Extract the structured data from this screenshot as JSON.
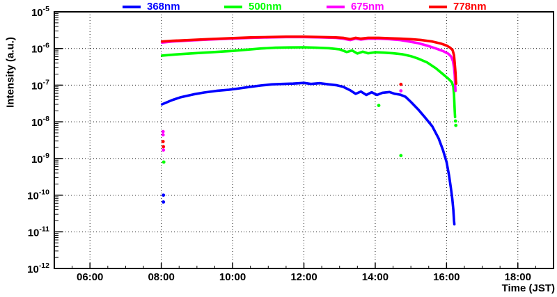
{
  "chart_data": {
    "type": "line",
    "title": "",
    "xlabel": "Time (JST)",
    "ylabel": "Intensity (a.u.)",
    "legend_position": "top",
    "grid": true,
    "x_axis": {
      "domain_hours": [
        5.0,
        19.0
      ],
      "major_ticks": [
        {
          "hour": 6,
          "label": "06:00"
        },
        {
          "hour": 8,
          "label": "08:00"
        },
        {
          "hour": 10,
          "label": "10:00"
        },
        {
          "hour": 12,
          "label": "12:00"
        },
        {
          "hour": 14,
          "label": "14:00"
        },
        {
          "hour": 16,
          "label": "16:00"
        },
        {
          "hour": 18,
          "label": "18:00"
        }
      ],
      "minor_interval_hours": 0.5
    },
    "y_axis": {
      "scale": "log",
      "domain": [
        1e-12,
        1e-05
      ],
      "tick_exponents": [
        -5,
        -6,
        -7,
        -8,
        -9,
        -10,
        -11,
        -12
      ]
    },
    "series": [
      {
        "name": "368nm",
        "color": "#0000ff",
        "points": [
          [
            8.02,
            3e-08
          ],
          [
            8.3,
            3.9e-08
          ],
          [
            8.55,
            4.7e-08
          ],
          [
            8.9,
            5.6e-08
          ],
          [
            9.2,
            6.3e-08
          ],
          [
            9.55,
            7e-08
          ],
          [
            9.9,
            7.5e-08
          ],
          [
            10.2,
            8.2e-08
          ],
          [
            10.5,
            9e-08
          ],
          [
            10.8,
            9.8e-08
          ],
          [
            11.1,
            1.05e-07
          ],
          [
            11.4,
            1.08e-07
          ],
          [
            11.7,
            1.1e-07
          ],
          [
            12.0,
            1.15e-07
          ],
          [
            12.2,
            1.08e-07
          ],
          [
            12.45,
            1.13e-07
          ],
          [
            12.7,
            1.05e-07
          ],
          [
            12.9,
            1e-07
          ],
          [
            13.1,
            9e-08
          ],
          [
            13.3,
            7.2e-08
          ],
          [
            13.45,
            5.8e-08
          ],
          [
            13.6,
            6.7e-08
          ],
          [
            13.75,
            5.4e-08
          ],
          [
            13.9,
            6.4e-08
          ],
          [
            14.05,
            5.4e-08
          ],
          [
            14.2,
            6.2e-08
          ],
          [
            14.4,
            6.5e-08
          ],
          [
            14.55,
            5.8e-08
          ],
          [
            14.7,
            5.5e-08
          ],
          [
            14.85,
            4.8e-08
          ],
          [
            15.0,
            3.5e-08
          ],
          [
            15.2,
            2.2e-08
          ],
          [
            15.4,
            1.3e-08
          ],
          [
            15.6,
            7.5e-09
          ],
          [
            15.78,
            3.5e-09
          ],
          [
            15.9,
            1.7e-09
          ],
          [
            16.0,
            8e-10
          ],
          [
            16.07,
            3.5e-10
          ],
          [
            16.12,
            1.6e-10
          ],
          [
            16.16,
            8e-11
          ],
          [
            16.19,
            4e-11
          ],
          [
            16.21,
            2e-11
          ],
          [
            16.22,
            1.6e-11
          ]
        ],
        "outlier_points": [
          [
            8.06,
            1e-10
          ],
          [
            8.06,
            6.5e-11
          ]
        ]
      },
      {
        "name": "500nm",
        "color": "#00ff00",
        "points": [
          [
            8.02,
            6.4e-07
          ],
          [
            8.5,
            7e-07
          ],
          [
            9.0,
            7.5e-07
          ],
          [
            9.5,
            8e-07
          ],
          [
            10.0,
            8.6e-07
          ],
          [
            10.4,
            9.3e-07
          ],
          [
            10.8,
            1e-06
          ],
          [
            11.2,
            1.05e-06
          ],
          [
            11.6,
            1.07e-06
          ],
          [
            12.0,
            1.08e-06
          ],
          [
            12.35,
            1.05e-06
          ],
          [
            12.7,
            1.02e-06
          ],
          [
            13.0,
            9.5e-07
          ],
          [
            13.2,
            8e-07
          ],
          [
            13.35,
            8.8e-07
          ],
          [
            13.5,
            7.3e-07
          ],
          [
            13.65,
            8.2e-07
          ],
          [
            13.8,
            7.4e-07
          ],
          [
            14.0,
            7.9e-07
          ],
          [
            14.25,
            7.7e-07
          ],
          [
            14.5,
            7.4e-07
          ],
          [
            14.75,
            7e-07
          ],
          [
            15.0,
            6.2e-07
          ],
          [
            15.2,
            5.3e-07
          ],
          [
            15.45,
            4.2e-07
          ],
          [
            15.7,
            2.9e-07
          ],
          [
            15.9,
            2e-07
          ],
          [
            16.05,
            1.5e-07
          ],
          [
            16.15,
            1.2e-07
          ],
          [
            16.19,
            9e-08
          ],
          [
            16.21,
            5.5e-08
          ],
          [
            16.22,
            3.3e-08
          ],
          [
            16.23,
            2e-08
          ],
          [
            16.24,
            1.35e-08
          ]
        ],
        "outlier_points": [
          [
            8.07,
            8e-10
          ],
          [
            14.1,
            2.8e-08
          ],
          [
            14.72,
            1.2e-09
          ],
          [
            16.25,
            1.05e-08
          ],
          [
            16.26,
            8e-09
          ]
        ]
      },
      {
        "name": "675nm",
        "color": "#ff00ff",
        "points": [
          [
            8.02,
            1.45e-06
          ],
          [
            8.3,
            1.55e-06
          ],
          [
            8.8,
            1.65e-06
          ],
          [
            9.3,
            1.75e-06
          ],
          [
            9.9,
            1.85e-06
          ],
          [
            10.5,
            1.95e-06
          ],
          [
            11.0,
            2e-06
          ],
          [
            11.5,
            2.05e-06
          ],
          [
            12.0,
            2.05e-06
          ],
          [
            12.5,
            2e-06
          ],
          [
            12.9,
            1.95e-06
          ],
          [
            13.1,
            1.85e-06
          ],
          [
            13.3,
            1.7e-06
          ],
          [
            13.45,
            1.85e-06
          ],
          [
            13.6,
            1.75e-06
          ],
          [
            13.8,
            1.85e-06
          ],
          [
            14.1,
            1.85e-06
          ],
          [
            14.4,
            1.8e-06
          ],
          [
            14.7,
            1.7e-06
          ],
          [
            14.95,
            1.55e-06
          ],
          [
            15.2,
            1.4e-06
          ],
          [
            15.45,
            1.2e-06
          ],
          [
            15.7,
            1e-06
          ],
          [
            15.9,
            8.5e-07
          ],
          [
            16.05,
            7.2e-07
          ],
          [
            16.13,
            6e-07
          ],
          [
            16.18,
            4.5e-07
          ],
          [
            16.21,
            3e-07
          ],
          [
            16.23,
            1.9e-07
          ],
          [
            16.24,
            1.2e-07
          ],
          [
            16.25,
            7e-08
          ]
        ],
        "outlier_points": [
          [
            8.05,
            5.4e-09
          ],
          [
            8.05,
            4.4e-09
          ],
          [
            8.06,
            1.7e-09
          ],
          [
            14.72,
            7e-08
          ]
        ]
      },
      {
        "name": "778nm",
        "color": "#ff0000",
        "points": [
          [
            8.02,
            1.55e-06
          ],
          [
            8.3,
            1.62e-06
          ],
          [
            8.8,
            1.7e-06
          ],
          [
            9.3,
            1.8e-06
          ],
          [
            9.9,
            1.9e-06
          ],
          [
            10.5,
            2e-06
          ],
          [
            11.0,
            2.05e-06
          ],
          [
            11.5,
            2.1e-06
          ],
          [
            12.0,
            2.1e-06
          ],
          [
            12.5,
            2.05e-06
          ],
          [
            12.9,
            2e-06
          ],
          [
            13.1,
            1.95e-06
          ],
          [
            13.3,
            1.8e-06
          ],
          [
            13.45,
            1.95e-06
          ],
          [
            13.6,
            1.85e-06
          ],
          [
            13.8,
            1.95e-06
          ],
          [
            14.1,
            1.95e-06
          ],
          [
            14.4,
            1.9e-06
          ],
          [
            14.7,
            1.85e-06
          ],
          [
            15.0,
            1.8e-06
          ],
          [
            15.3,
            1.7e-06
          ],
          [
            15.6,
            1.55e-06
          ],
          [
            15.85,
            1.35e-06
          ],
          [
            16.0,
            1.2e-06
          ],
          [
            16.1,
            1.05e-06
          ],
          [
            16.17,
            9e-07
          ],
          [
            16.21,
            6.5e-07
          ],
          [
            16.23,
            4e-07
          ],
          [
            16.25,
            2.2e-07
          ],
          [
            16.26,
            1.4e-07
          ],
          [
            16.27,
            1.1e-07
          ]
        ],
        "outlier_points": [
          [
            8.05,
            2.9e-09
          ],
          [
            8.06,
            2.1e-09
          ],
          [
            14.72,
            1.05e-07
          ]
        ]
      }
    ]
  }
}
